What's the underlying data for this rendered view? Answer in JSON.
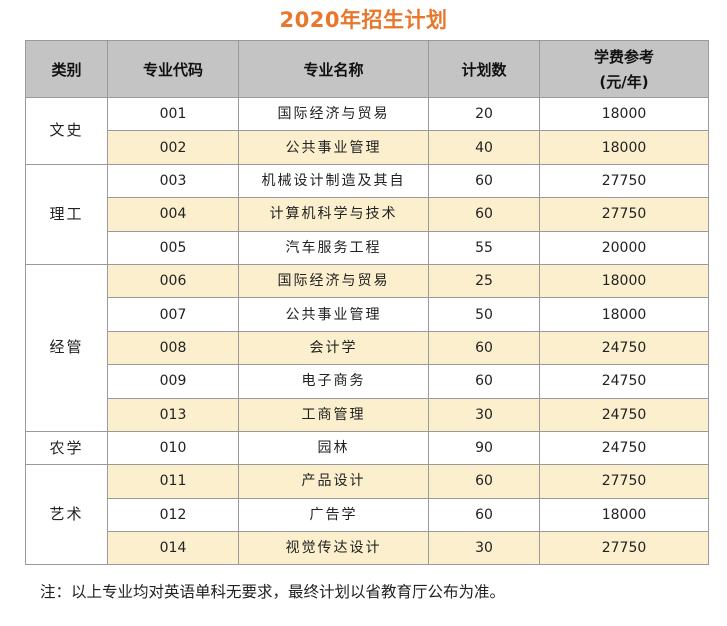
{
  "title": "2020年招生计划",
  "headers": {
    "category": "类别",
    "code": "专业代码",
    "name": "专业名称",
    "count": "计划数",
    "fee_line1": "学费参考",
    "fee_line2": "(元/年)"
  },
  "groups": [
    {
      "category": "文史",
      "rows": [
        {
          "code": "001",
          "name": "国际经济与贸易",
          "count": "20",
          "fee": "18000"
        },
        {
          "code": "002",
          "name": "公共事业管理",
          "count": "40",
          "fee": "18000"
        }
      ]
    },
    {
      "category": "理工",
      "rows": [
        {
          "code": "003",
          "name": "机械设计制造及其自",
          "count": "60",
          "fee": "27750"
        },
        {
          "code": "004",
          "name": "计算机科学与技术",
          "count": "60",
          "fee": "27750"
        },
        {
          "code": "005",
          "name": "汽车服务工程",
          "count": "55",
          "fee": "20000"
        }
      ]
    },
    {
      "category": "经管",
      "rows": [
        {
          "code": "006",
          "name": "国际经济与贸易",
          "count": "25",
          "fee": "18000"
        },
        {
          "code": "007",
          "name": "公共事业管理",
          "count": "50",
          "fee": "18000"
        },
        {
          "code": "008",
          "name": "会计学",
          "count": "60",
          "fee": "24750"
        },
        {
          "code": "009",
          "name": "电子商务",
          "count": "60",
          "fee": "24750"
        },
        {
          "code": "013",
          "name": "工商管理",
          "count": "30",
          "fee": "24750"
        }
      ]
    },
    {
      "category": "农学",
      "rows": [
        {
          "code": "010",
          "name": "园林",
          "count": "90",
          "fee": "24750"
        }
      ]
    },
    {
      "category": "艺术",
      "rows": [
        {
          "code": "011",
          "name": "产品设计",
          "count": "60",
          "fee": "27750"
        },
        {
          "code": "012",
          "name": "广告学",
          "count": "60",
          "fee": "18000"
        },
        {
          "code": "014",
          "name": "视觉传达设计",
          "count": "30",
          "fee": "27750"
        }
      ]
    }
  ],
  "note": "注：以上专业均对英语单科无要求，最终计划以省教育厅公布为准。"
}
